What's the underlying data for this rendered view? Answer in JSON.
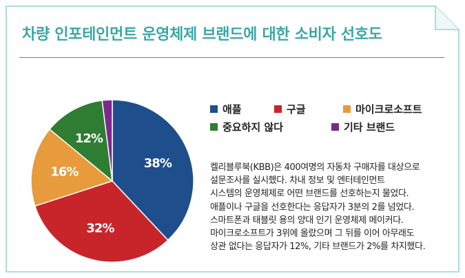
{
  "header": {
    "title": "차량 인포테인먼트 운영체제 브랜드에 대한 소비자 선호도"
  },
  "colors": {
    "title": "#3aa6a6",
    "frame": "#8fd4d4"
  },
  "chart_data": {
    "type": "pie",
    "title": "",
    "series": [
      {
        "name": "애플",
        "value": 38,
        "label": "38%",
        "color": "#1f4e8c"
      },
      {
        "name": "구글",
        "value": 32,
        "label": "32%",
        "color": "#c8252b"
      },
      {
        "name": "마이크로소프트",
        "value": 16,
        "label": "16%",
        "color": "#e89b3c"
      },
      {
        "name": "중요하지 않다",
        "value": 12,
        "label": "12%",
        "color": "#2e7d32"
      },
      {
        "name": "기타 브랜드",
        "value": 2,
        "label": "",
        "color": "#7b2a8c"
      }
    ],
    "legend_position": "right"
  },
  "description": {
    "lines": [
      "켈리블루북(KBB)은 400여명의 자동차 구매자를 대상으로",
      "설문조사를 실시했다. 차내 정보 및 엔터테인먼트",
      "시스템의 운영체제로 어떤 브랜드를 선호하는지 물었다.",
      "애플이나 구글을 선호한다는 응답자가 3분의 2를 넘었다.",
      "스마트폰과 태블릿 용의 양대 인기 운영체제 메이커다.",
      "마이크로소프트가 3위에 올랐으며 그 뒤를 이어 아무래도",
      "상관 없다는 응답자가 12%, 기타 브랜드가 2%를 차지했다."
    ]
  }
}
